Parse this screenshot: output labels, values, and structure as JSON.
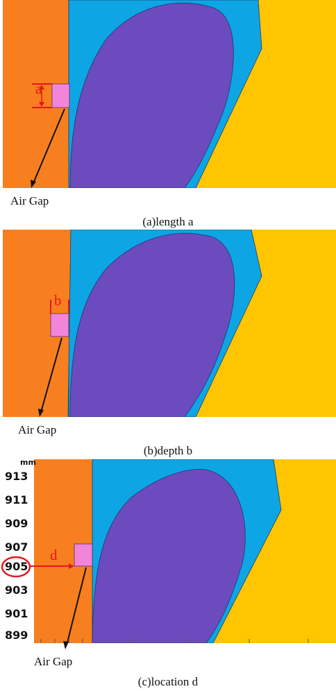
{
  "panels": [
    {
      "air_gap_label": "Air Gap",
      "dimension_label": "a",
      "caption": "(a)length a"
    },
    {
      "air_gap_label": "Air Gap",
      "dimension_label": "b",
      "caption": "(b)depth b"
    },
    {
      "air_gap_label": "Air Gap",
      "dimension_label": "d",
      "caption": "(c)location d",
      "axis": {
        "unit": "mm",
        "ticks": [
          "913",
          "911",
          "909",
          "907",
          "905",
          "903",
          "901",
          "899"
        ],
        "highlighted_tick": "905"
      }
    }
  ],
  "colors": {
    "orange": "#F77F1F",
    "blue": "#0EA5E5",
    "purple": "#6B4BBE",
    "yellow": "#FEC500",
    "pink": "#F285D9",
    "red": "#E6161C"
  }
}
